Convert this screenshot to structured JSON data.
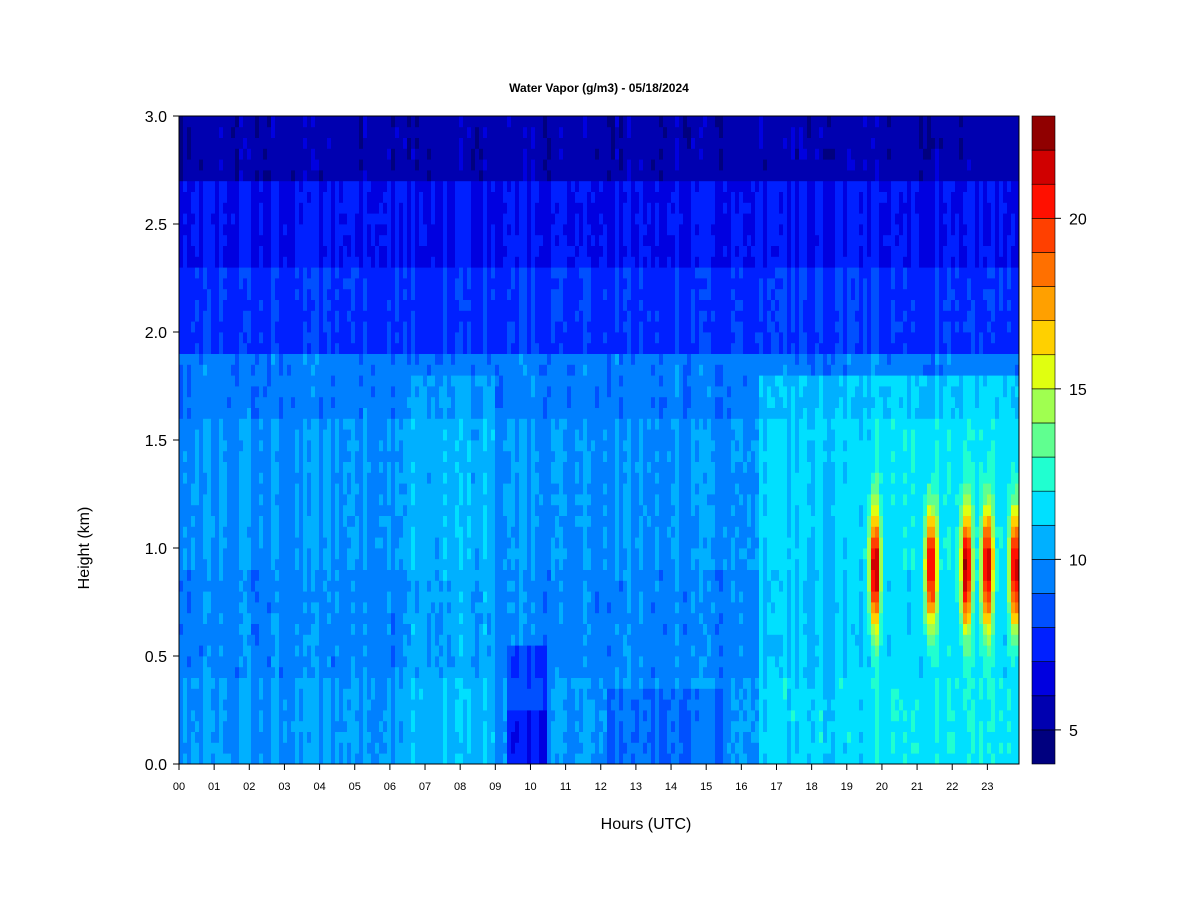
{
  "chart_data": {
    "type": "heatmap",
    "title": "Water Vapor (g/m3) - 05/18/2024",
    "xlabel": "Hours (UTC)",
    "ylabel": "Height (km)",
    "x_ticks": [
      "00",
      "01",
      "02",
      "03",
      "04",
      "05",
      "06",
      "07",
      "08",
      "09",
      "10",
      "11",
      "12",
      "13",
      "14",
      "15",
      "16",
      "17",
      "18",
      "19",
      "20",
      "21",
      "22",
      "23"
    ],
    "y_ticks": [
      "0.0",
      "0.5",
      "1.0",
      "1.5",
      "2.0",
      "2.5",
      "3.0"
    ],
    "xlim": [
      0,
      23.9
    ],
    "ylim": [
      0,
      3.0
    ],
    "colorbar": {
      "range": [
        4,
        23
      ],
      "ticks": [
        "5",
        "10",
        "15",
        "20"
      ],
      "tick_values": [
        5,
        10,
        15,
        20
      ],
      "colors": [
        "#00007f",
        "#0000b0",
        "#0000e0",
        "#0020ff",
        "#0050ff",
        "#0080ff",
        "#00b0ff",
        "#00e0ff",
        "#20ffd0",
        "#60ff90",
        "#a0ff50",
        "#e0ff10",
        "#ffd000",
        "#ffa000",
        "#ff7000",
        "#ff4000",
        "#ff1000",
        "#d00000",
        "#900000"
      ]
    },
    "profile_bands": [
      {
        "height_km": [
          0.0,
          0.4
        ],
        "base_g_m3": 10.0
      },
      {
        "height_km": [
          0.4,
          0.9
        ],
        "base_g_m3": 9.6
      },
      {
        "height_km": [
          0.9,
          1.6
        ],
        "base_g_m3": 9.9
      },
      {
        "height_km": [
          1.6,
          1.9
        ],
        "base_g_m3": 9.4
      },
      {
        "height_km": [
          1.9,
          2.3
        ],
        "base_g_m3": 7.8
      },
      {
        "height_km": [
          2.3,
          2.7
        ],
        "base_g_m3": 7.0
      },
      {
        "height_km": [
          2.7,
          3.0
        ],
        "base_g_m3": 5.5
      }
    ],
    "moist_events_utc": [
      19.8,
      21.4,
      22.4,
      23.0,
      23.8
    ],
    "moist_event_peak_g_m3": 21,
    "dry_surface_period_utc": [
      9.3,
      10.5
    ]
  }
}
